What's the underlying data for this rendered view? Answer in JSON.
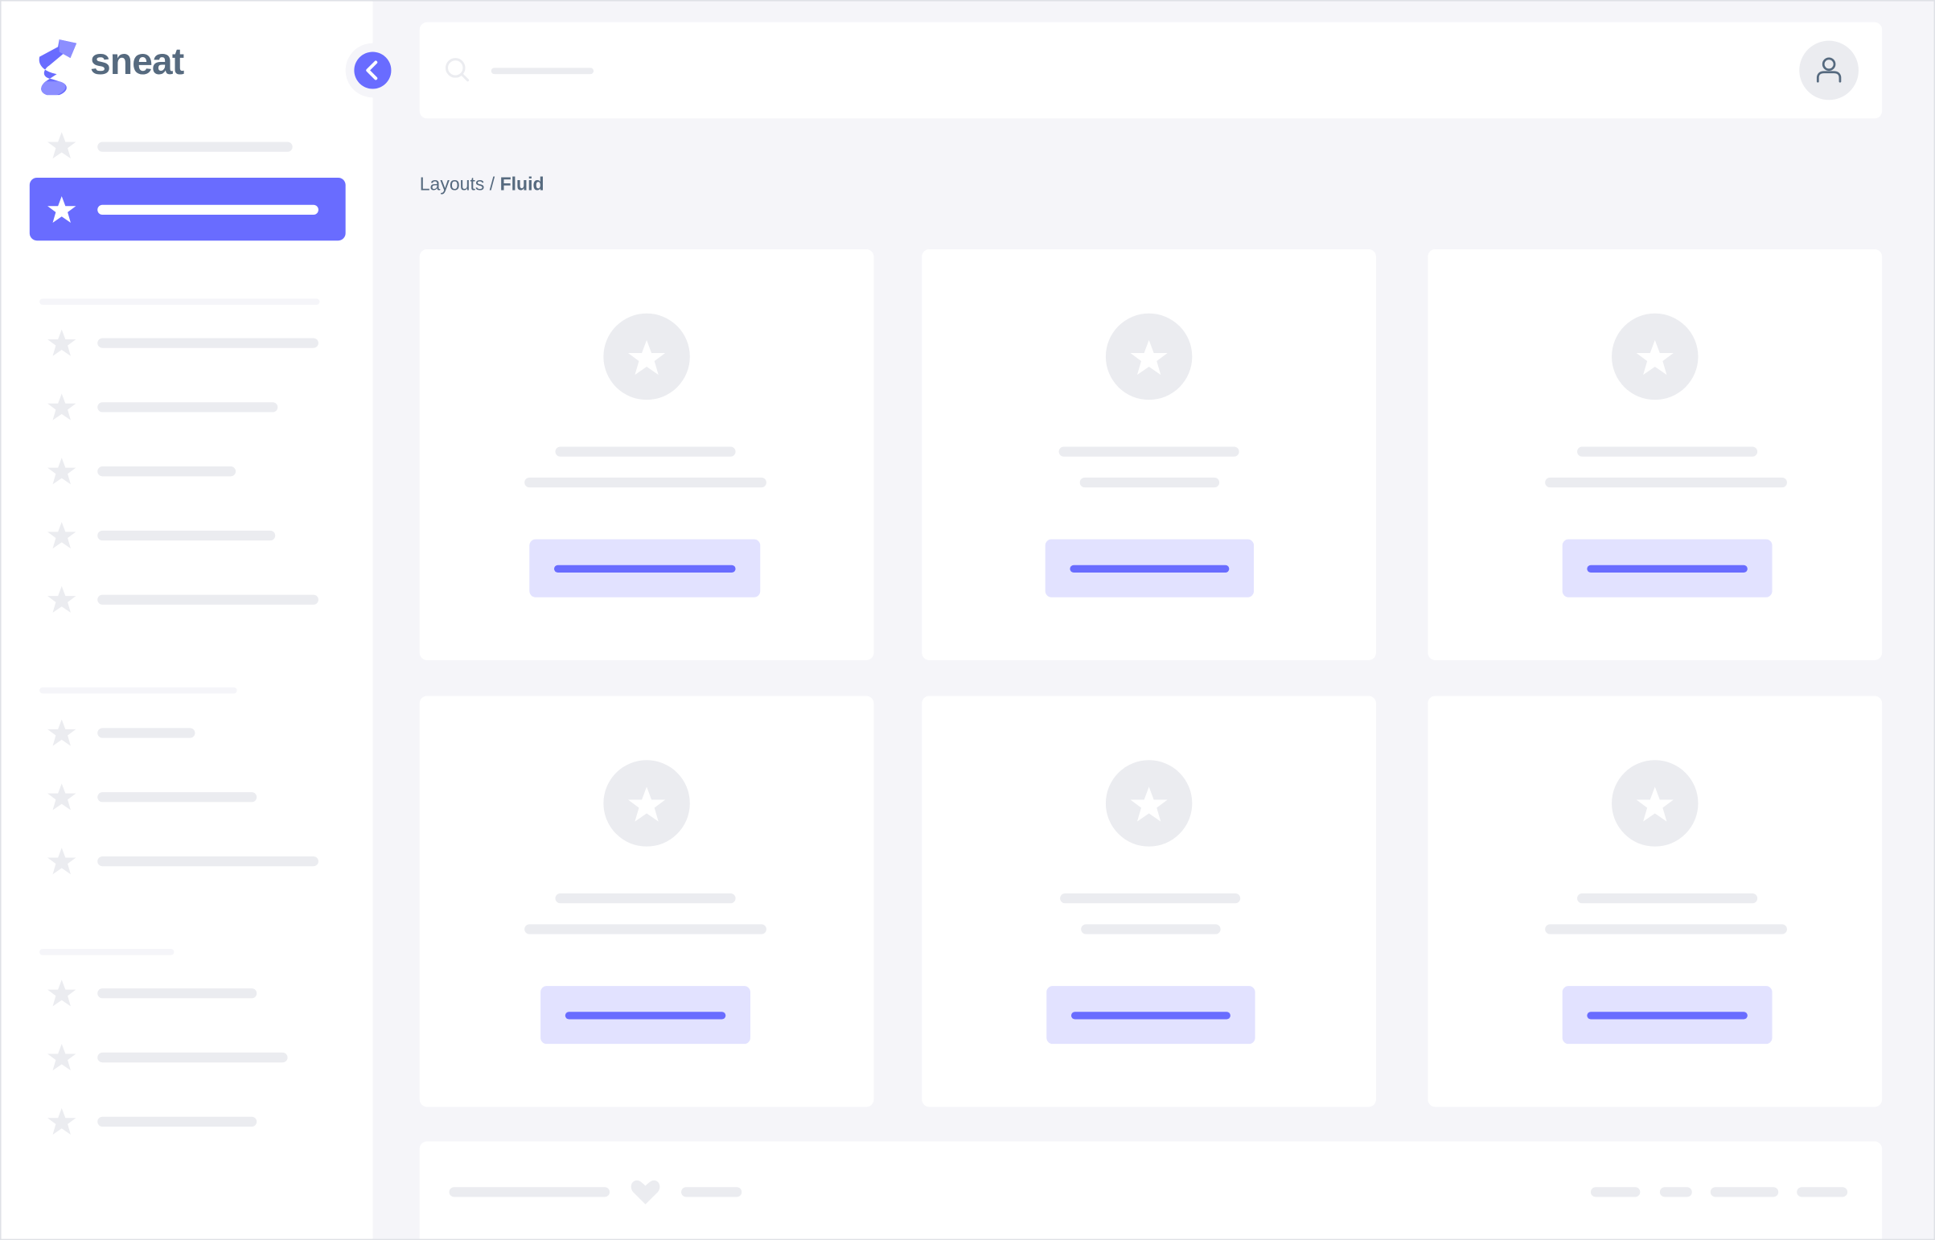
{
  "app": {
    "logo_text": "sneat",
    "accent": "#696cff"
  },
  "breadcrumb": {
    "parent": "Layouts",
    "separator": " / ",
    "current": "Fluid"
  },
  "icons": {
    "logo": "sneat-s-logo-icon",
    "collapse": "chevron-left-icon",
    "search": "search-icon",
    "user": "user-icon",
    "menu_item": "star-icon",
    "footer": "heart-icon"
  },
  "colors": {
    "background": "#f5f5f9",
    "placeholder": "#ebecf0",
    "button_bg": "#e2e2ff",
    "text": "#566a7f"
  }
}
